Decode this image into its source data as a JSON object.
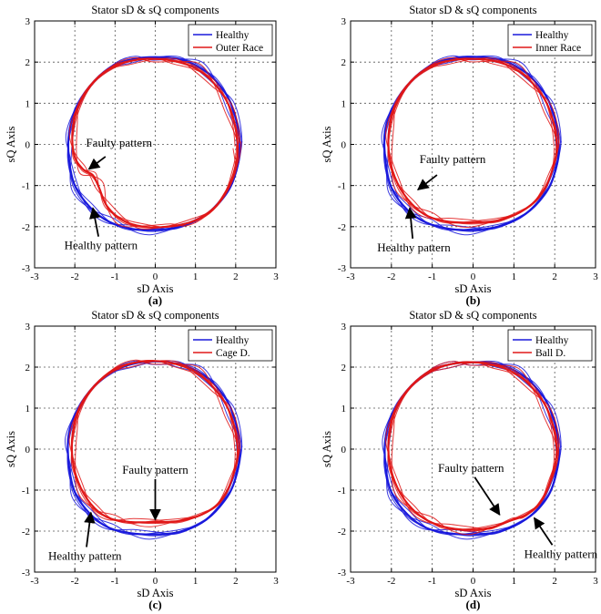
{
  "chart_data": [
    {
      "type": "line",
      "panel_label": "(a)",
      "title": "Stator sD & sQ components",
      "xlabel": "sD Axis",
      "ylabel": "sQ Axis",
      "xlim": [
        -3,
        3
      ],
      "ylim": [
        -3,
        3
      ],
      "xticks": [
        -3,
        -2,
        -1,
        0,
        1,
        2,
        3
      ],
      "yticks": [
        -3,
        -2,
        -1,
        0,
        1,
        2,
        3
      ],
      "grid": true,
      "legend_position": "top-right",
      "series": [
        {
          "name": "Healthy",
          "color": "#1a1adc",
          "x": [
            2.1,
            1.9,
            1.5,
            1.05,
            0.55,
            0.0,
            -0.55,
            -1.05,
            -1.5,
            -1.9,
            -2.13,
            -2.15,
            -2.0,
            -1.6,
            -1.15,
            -0.6,
            0.0,
            0.6,
            1.15,
            1.6,
            1.95,
            2.1
          ],
          "y": [
            0.0,
            0.95,
            1.55,
            1.9,
            2.08,
            2.12,
            2.07,
            1.9,
            1.55,
            1.0,
            0.35,
            -0.3,
            -1.0,
            -1.55,
            -1.88,
            -2.05,
            -2.08,
            -2.0,
            -1.78,
            -1.4,
            -0.85,
            0.0
          ]
        },
        {
          "name": "Outer Race",
          "color": "#e01818",
          "x": [
            2.05,
            1.85,
            1.45,
            1.0,
            0.5,
            0.0,
            -0.55,
            -1.05,
            -1.5,
            -1.85,
            -2.05,
            -2.02,
            -1.8,
            -1.55,
            -1.4,
            -1.2,
            -0.8,
            -0.3,
            0.3,
            0.85,
            1.35,
            1.7,
            1.95,
            2.05
          ],
          "y": [
            0.0,
            0.9,
            1.5,
            1.85,
            2.02,
            2.08,
            2.04,
            1.88,
            1.55,
            1.05,
            0.4,
            -0.25,
            -0.6,
            -0.75,
            -1.05,
            -1.5,
            -1.85,
            -2.0,
            -2.0,
            -1.9,
            -1.65,
            -1.25,
            -0.7,
            0.0
          ]
        }
      ],
      "annotations": [
        {
          "text": "Faulty pattern",
          "x": -0.9,
          "y": -0.05,
          "point_x": -1.65,
          "point_y": -0.6
        },
        {
          "text": "Healthy pattern",
          "x": -1.35,
          "y": -2.55,
          "point_x": -1.55,
          "point_y": -1.55
        }
      ]
    },
    {
      "type": "line",
      "panel_label": "(b)",
      "title": "Stator sD & sQ components",
      "xlabel": "sD Axis",
      "ylabel": "sQ Axis",
      "xlim": [
        -3,
        3
      ],
      "ylim": [
        -3,
        3
      ],
      "xticks": [
        -3,
        -2,
        -1,
        0,
        1,
        2,
        3
      ],
      "yticks": [
        -3,
        -2,
        -1,
        0,
        1,
        2,
        3
      ],
      "grid": true,
      "legend_position": "top-right",
      "series": [
        {
          "name": "Healthy",
          "color": "#1a1adc",
          "x": [
            2.1,
            1.9,
            1.5,
            1.05,
            0.55,
            0.0,
            -0.55,
            -1.05,
            -1.5,
            -1.9,
            -2.15,
            -2.15,
            -2.0,
            -1.6,
            -1.15,
            -0.6,
            0.0,
            0.6,
            1.15,
            1.6,
            1.95,
            2.1
          ],
          "y": [
            0.0,
            0.95,
            1.55,
            1.9,
            2.08,
            2.13,
            2.08,
            1.9,
            1.55,
            1.0,
            0.35,
            -0.35,
            -1.05,
            -1.6,
            -1.9,
            -2.05,
            -2.08,
            -2.0,
            -1.78,
            -1.4,
            -0.85,
            0.0
          ]
        },
        {
          "name": "Inner Race",
          "color": "#e01818",
          "x": [
            2.05,
            1.85,
            1.45,
            1.0,
            0.5,
            0.0,
            -0.55,
            -1.05,
            -1.5,
            -1.85,
            -2.05,
            -2.05,
            -1.85,
            -1.5,
            -1.1,
            -0.6,
            0.0,
            0.6,
            1.15,
            1.6,
            1.9,
            2.05
          ],
          "y": [
            0.0,
            0.9,
            1.5,
            1.85,
            2.03,
            2.08,
            2.04,
            1.88,
            1.55,
            1.05,
            0.4,
            -0.3,
            -0.95,
            -1.45,
            -1.75,
            -1.88,
            -1.9,
            -1.85,
            -1.65,
            -1.3,
            -0.75,
            0.0
          ]
        }
      ],
      "annotations": [
        {
          "text": "Faulty pattern",
          "x": -0.5,
          "y": -0.45,
          "point_x": -1.35,
          "point_y": -1.1
        },
        {
          "text": "Healthy pattern",
          "x": -1.45,
          "y": -2.6,
          "point_x": -1.55,
          "point_y": -1.55
        }
      ]
    },
    {
      "type": "line",
      "panel_label": "(c)",
      "title": "Stator sD & sQ components",
      "xlabel": "sD Axis",
      "ylabel": "sQ Axis",
      "xlim": [
        -3,
        3
      ],
      "ylim": [
        -3,
        3
      ],
      "xticks": [
        -3,
        -2,
        -1,
        0,
        1,
        2,
        3
      ],
      "yticks": [
        -3,
        -2,
        -1,
        0,
        1,
        2,
        3
      ],
      "grid": true,
      "legend_position": "top-right",
      "series": [
        {
          "name": "Healthy",
          "color": "#1a1adc",
          "x": [
            2.1,
            1.9,
            1.5,
            1.05,
            0.55,
            0.0,
            -0.55,
            -1.05,
            -1.5,
            -1.9,
            -2.15,
            -2.15,
            -2.0,
            -1.6,
            -1.15,
            -0.6,
            0.0,
            0.6,
            1.15,
            1.6,
            1.95,
            2.1
          ],
          "y": [
            0.0,
            0.95,
            1.55,
            1.9,
            2.08,
            2.14,
            2.08,
            1.9,
            1.55,
            1.0,
            0.35,
            -0.35,
            -1.05,
            -1.6,
            -1.92,
            -2.05,
            -2.08,
            -2.02,
            -1.8,
            -1.4,
            -0.85,
            0.0
          ]
        },
        {
          "name": "Cage D.",
          "color": "#e01818",
          "x": [
            2.05,
            1.85,
            1.45,
            1.0,
            0.5,
            0.0,
            -0.55,
            -1.05,
            -1.5,
            -1.85,
            -2.05,
            -2.05,
            -1.85,
            -1.5,
            -1.1,
            -0.6,
            0.0,
            0.6,
            1.15,
            1.6,
            1.9,
            2.05
          ],
          "y": [
            0.0,
            0.9,
            1.5,
            1.88,
            2.08,
            2.15,
            2.1,
            1.92,
            1.55,
            1.05,
            0.4,
            -0.3,
            -0.95,
            -1.45,
            -1.7,
            -1.78,
            -1.78,
            -1.75,
            -1.6,
            -1.3,
            -0.75,
            0.0
          ]
        }
      ],
      "annotations": [
        {
          "text": "Faulty pattern",
          "x": 0.0,
          "y": -0.6,
          "point_x": 0.0,
          "point_y": -1.72
        },
        {
          "text": "Healthy pattern",
          "x": -1.75,
          "y": -2.7,
          "point_x": -1.6,
          "point_y": -1.55
        }
      ]
    },
    {
      "type": "line",
      "panel_label": "(d)",
      "title": "Stator sD & sQ components",
      "xlabel": "sD Axis",
      "ylabel": "sQ Axis",
      "xlim": [
        -3,
        3
      ],
      "ylim": [
        -3,
        3
      ],
      "xticks": [
        -3,
        -2,
        -1,
        0,
        1,
        2,
        3
      ],
      "yticks": [
        -3,
        -2,
        -1,
        0,
        1,
        2,
        3
      ],
      "grid": true,
      "legend_position": "top-right",
      "series": [
        {
          "name": "Healthy",
          "color": "#1a1adc",
          "x": [
            2.1,
            1.9,
            1.5,
            1.05,
            0.55,
            0.0,
            -0.55,
            -1.05,
            -1.5,
            -1.9,
            -2.13,
            -2.15,
            -2.0,
            -1.6,
            -1.15,
            -0.6,
            0.0,
            0.6,
            1.15,
            1.6,
            1.95,
            2.1
          ],
          "y": [
            0.0,
            0.95,
            1.55,
            1.9,
            2.08,
            2.12,
            2.07,
            1.9,
            1.55,
            1.0,
            0.35,
            -0.35,
            -1.05,
            -1.6,
            -1.92,
            -2.05,
            -2.08,
            -2.02,
            -1.8,
            -1.45,
            -0.9,
            0.0
          ]
        },
        {
          "name": "Ball D.",
          "color": "#e01818",
          "x": [
            2.05,
            1.85,
            1.45,
            1.0,
            0.5,
            0.0,
            -0.55,
            -1.05,
            -1.5,
            -1.85,
            -2.05,
            -2.05,
            -1.85,
            -1.5,
            -1.1,
            -0.6,
            0.0,
            0.5,
            0.9,
            1.3,
            1.65,
            1.9,
            2.05
          ],
          "y": [
            0.0,
            0.9,
            1.5,
            1.87,
            2.05,
            2.12,
            2.07,
            1.9,
            1.55,
            1.05,
            0.4,
            -0.3,
            -0.95,
            -1.45,
            -1.75,
            -1.92,
            -1.97,
            -1.9,
            -1.75,
            -1.6,
            -1.3,
            -0.75,
            0.0
          ]
        }
      ],
      "annotations": [
        {
          "text": "Faulty pattern",
          "x": -0.05,
          "y": -0.55,
          "point_x": 0.65,
          "point_y": -1.6
        },
        {
          "text": "Healthy pattern",
          "x": 2.15,
          "y": -2.65,
          "point_x": 1.5,
          "point_y": -1.68
        }
      ]
    }
  ]
}
